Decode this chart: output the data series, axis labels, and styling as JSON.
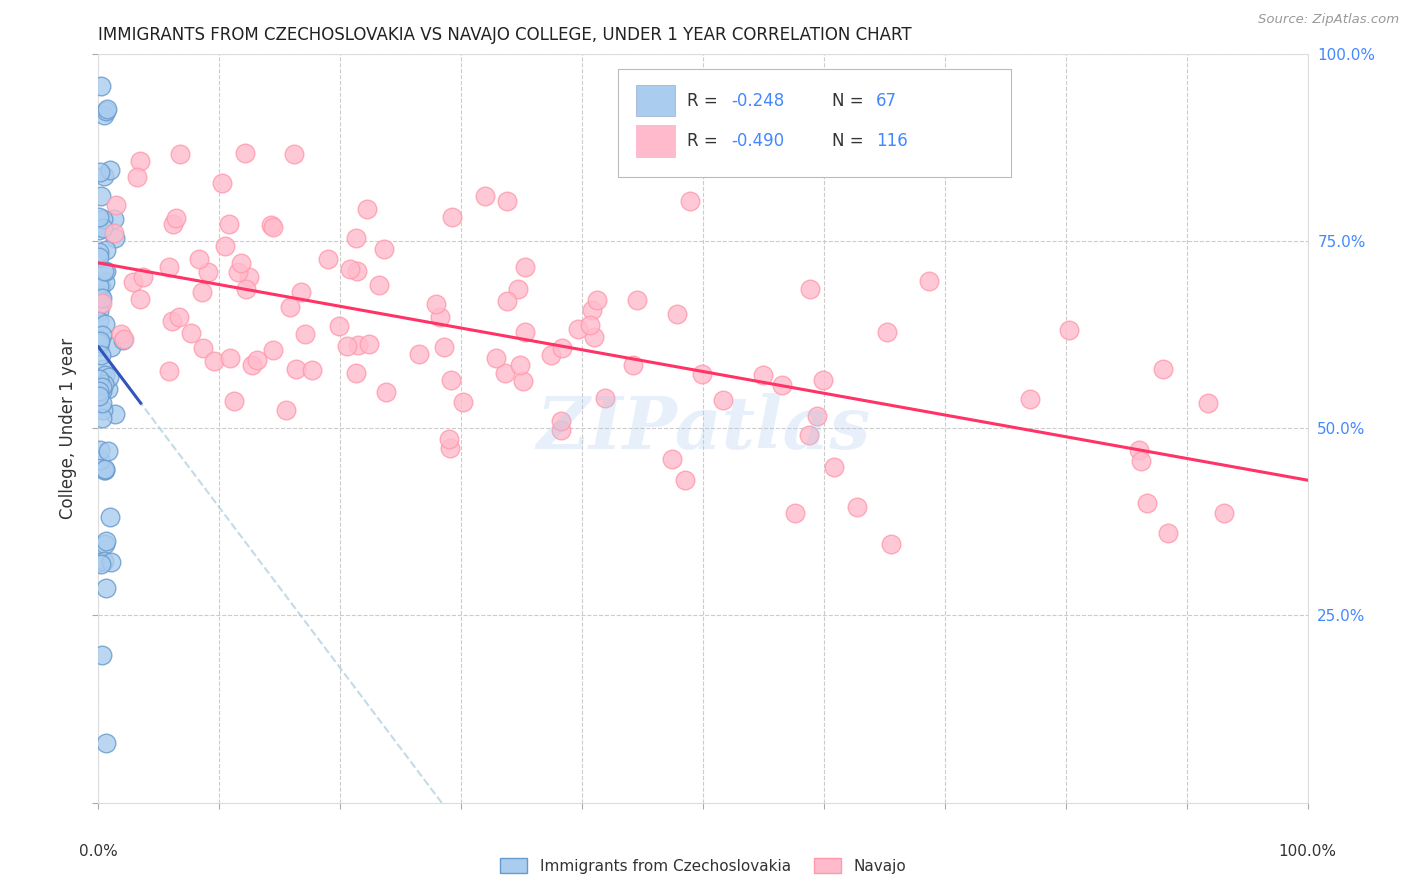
{
  "title": "IMMIGRANTS FROM CZECHOSLOVAKIA VS NAVAJO COLLEGE, UNDER 1 YEAR CORRELATION CHART",
  "source": "Source: ZipAtlas.com",
  "ylabel": "College, Under 1 year",
  "watermark": "ZIPatlas",
  "blue_label": "Immigrants from Czechoslovakia",
  "pink_label": "Navajo",
  "blue_R": "-0.248",
  "blue_N": "67",
  "pink_R": "-0.490",
  "pink_N": "116",
  "blue_face": "#AACCEE",
  "blue_edge": "#6699CC",
  "pink_face": "#FFBBCC",
  "pink_edge": "#FF99AA",
  "blue_line": "#3355BB",
  "pink_line": "#FF3366",
  "dash_color": "#AACCDD",
  "grid_color": "#CCCCCC",
  "right_tick_color": "#4488FF",
  "title_color": "#222222",
  "source_color": "#999999",
  "label_color": "#333333",
  "legend_edge_color": "#BBBBBB"
}
